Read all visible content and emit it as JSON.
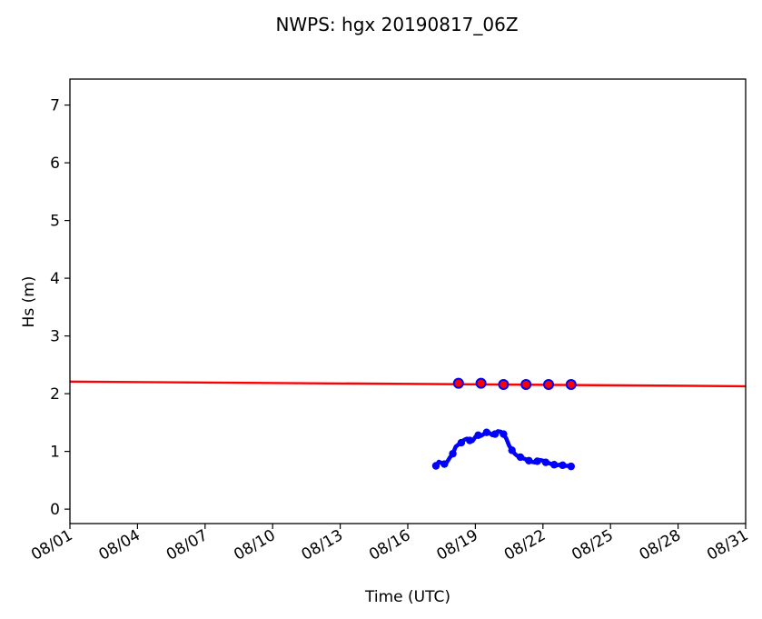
{
  "chart_data": {
    "type": "line",
    "title": "NWPS: hgx 20190817_06Z",
    "xlabel": "Time (UTC)",
    "ylabel": "Hs (m)",
    "x_axis_kind": "date",
    "xlim": [
      "2019-08-01",
      "2019-08-31"
    ],
    "ylim": [
      -0.25,
      7.45
    ],
    "yticks": [
      0,
      1,
      2,
      3,
      4,
      5,
      6,
      7
    ],
    "xticks": [
      {
        "date": "2019-08-01",
        "label": "08/01"
      },
      {
        "date": "2019-08-04",
        "label": "08/04"
      },
      {
        "date": "2019-08-07",
        "label": "08/07"
      },
      {
        "date": "2019-08-10",
        "label": "08/10"
      },
      {
        "date": "2019-08-13",
        "label": "08/13"
      },
      {
        "date": "2019-08-16",
        "label": "08/16"
      },
      {
        "date": "2019-08-19",
        "label": "08/19"
      },
      {
        "date": "2019-08-22",
        "label": "08/22"
      },
      {
        "date": "2019-08-25",
        "label": "08/25"
      },
      {
        "date": "2019-08-28",
        "label": "08/28"
      },
      {
        "date": "2019-08-31",
        "label": "08/31"
      }
    ],
    "grid": false,
    "colors": {
      "observed": "#0000ff",
      "threshold": "#ff0000",
      "marker_fill": "#ff0000",
      "marker_edge": "#0000ff"
    },
    "series": [
      {
        "style": "threshold-line",
        "x": [
          "2019-08-01T00:00",
          "2019-08-31T00:00"
        ],
        "y": [
          2.21,
          2.13
        ]
      },
      {
        "style": "observed-line",
        "x": [
          "2019-08-17T06:00",
          "2019-08-17T09:00",
          "2019-08-17T12:00",
          "2019-08-17T15:00",
          "2019-08-17T18:00",
          "2019-08-17T21:00",
          "2019-08-18T00:00",
          "2019-08-18T03:00",
          "2019-08-18T06:00",
          "2019-08-18T09:00",
          "2019-08-18T12:00",
          "2019-08-18T15:00",
          "2019-08-18T18:00",
          "2019-08-18T21:00",
          "2019-08-19T00:00",
          "2019-08-19T03:00",
          "2019-08-19T06:00",
          "2019-08-19T09:00",
          "2019-08-19T12:00",
          "2019-08-19T15:00",
          "2019-08-19T18:00",
          "2019-08-19T21:00",
          "2019-08-20T00:00",
          "2019-08-20T03:00",
          "2019-08-20T06:00",
          "2019-08-20T09:00",
          "2019-08-20T12:00",
          "2019-08-20T15:00",
          "2019-08-20T18:00",
          "2019-08-20T21:00",
          "2019-08-21T00:00",
          "2019-08-21T03:00",
          "2019-08-21T06:00",
          "2019-08-21T09:00",
          "2019-08-21T12:00",
          "2019-08-21T15:00",
          "2019-08-21T18:00",
          "2019-08-21T21:00",
          "2019-08-22T00:00",
          "2019-08-22T03:00",
          "2019-08-22T06:00",
          "2019-08-22T09:00",
          "2019-08-22T12:00",
          "2019-08-22T15:00",
          "2019-08-22T18:00",
          "2019-08-22T21:00",
          "2019-08-23T00:00",
          "2019-08-23T03:00",
          "2019-08-23T06:00"
        ],
        "y": [
          0.75,
          0.82,
          0.8,
          0.78,
          0.82,
          0.9,
          0.96,
          1.08,
          1.12,
          1.15,
          1.2,
          1.22,
          1.19,
          1.18,
          1.25,
          1.28,
          1.27,
          1.3,
          1.33,
          1.32,
          1.28,
          1.3,
          1.35,
          1.34,
          1.3,
          1.22,
          1.1,
          1.02,
          0.96,
          0.92,
          0.9,
          0.88,
          0.86,
          0.84,
          0.82,
          0.81,
          0.83,
          0.85,
          0.84,
          0.81,
          0.8,
          0.78,
          0.77,
          0.76,
          0.77,
          0.76,
          0.75,
          0.75,
          0.74
        ]
      },
      {
        "style": "markers",
        "x": [
          "2019-08-18T06:00",
          "2019-08-19T06:00",
          "2019-08-20T06:00",
          "2019-08-21T06:00",
          "2019-08-22T06:00",
          "2019-08-23T06:00"
        ],
        "y": [
          2.18,
          2.18,
          2.16,
          2.16,
          2.16,
          2.16
        ]
      }
    ]
  }
}
